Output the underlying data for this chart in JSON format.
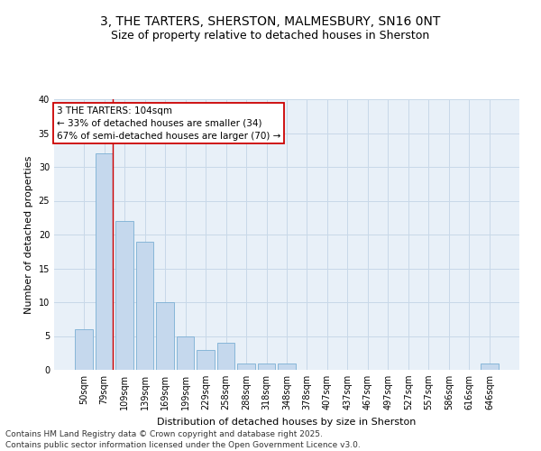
{
  "title_line1": "3, THE TARTERS, SHERSTON, MALMESBURY, SN16 0NT",
  "title_line2": "Size of property relative to detached houses in Sherston",
  "xlabel": "Distribution of detached houses by size in Sherston",
  "ylabel": "Number of detached properties",
  "categories": [
    "50sqm",
    "79sqm",
    "109sqm",
    "139sqm",
    "169sqm",
    "199sqm",
    "229sqm",
    "258sqm",
    "288sqm",
    "318sqm",
    "348sqm",
    "378sqm",
    "407sqm",
    "437sqm",
    "467sqm",
    "497sqm",
    "527sqm",
    "557sqm",
    "586sqm",
    "616sqm",
    "646sqm"
  ],
  "values": [
    6,
    32,
    22,
    19,
    10,
    5,
    3,
    4,
    1,
    1,
    1,
    0,
    0,
    0,
    0,
    0,
    0,
    0,
    0,
    0,
    1
  ],
  "bar_color": "#c5d8ed",
  "bar_edge_color": "#7bafd4",
  "grid_color": "#c8d8e8",
  "background_color": "#e8f0f8",
  "annotation_box_text": "3 THE TARTERS: 104sqm\n← 33% of detached houses are smaller (34)\n67% of semi-detached houses are larger (70) →",
  "annotation_box_edge_color": "#cc0000",
  "vertical_line_color": "#cc0000",
  "ylim": [
    0,
    40
  ],
  "yticks": [
    0,
    5,
    10,
    15,
    20,
    25,
    30,
    35,
    40
  ],
  "footer_line1": "Contains HM Land Registry data © Crown copyright and database right 2025.",
  "footer_line2": "Contains public sector information licensed under the Open Government Licence v3.0.",
  "title_fontsize": 10,
  "subtitle_fontsize": 9,
  "axis_label_fontsize": 8,
  "tick_fontsize": 7,
  "annotation_fontsize": 7.5,
  "footer_fontsize": 6.5
}
